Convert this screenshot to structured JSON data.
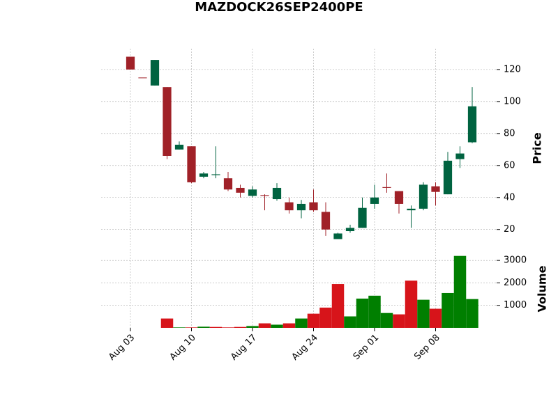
{
  "chart_data": {
    "type": "candlestick",
    "title": "MAZDOCK26SEP2400PE",
    "x": [
      0,
      1,
      2,
      3,
      4,
      5,
      6,
      7,
      8,
      9,
      10,
      11,
      12,
      13,
      14,
      15,
      16,
      17,
      18,
      19,
      20,
      21,
      22,
      23,
      24,
      25,
      26,
      27,
      28
    ],
    "open": [
      128,
      115,
      110,
      109,
      70,
      72,
      53,
      54,
      52,
      46,
      41,
      41.5,
      39,
      37,
      32,
      37,
      31,
      14,
      19,
      21,
      36,
      46.5,
      44,
      32,
      33,
      47,
      42,
      64,
      74.5
    ],
    "high": [
      128,
      115,
      126,
      109,
      75,
      72,
      56,
      72,
      56,
      48,
      47,
      42,
      49,
      40,
      38.5,
      45,
      37,
      18,
      23,
      40,
      48,
      55,
      44,
      35,
      49.5,
      49.5,
      68.5,
      72,
      109
    ],
    "low": [
      120,
      115,
      110,
      64,
      70,
      49,
      52,
      52,
      44,
      40,
      40,
      32,
      38,
      30,
      27,
      31,
      16,
      14,
      18,
      21,
      33,
      43,
      30,
      21,
      32,
      35,
      42,
      58.5,
      74
    ],
    "close": [
      120,
      115,
      126,
      66,
      73,
      49.5,
      55,
      54.5,
      45,
      43,
      45,
      41,
      46,
      32,
      36,
      32,
      20,
      17.5,
      21,
      33.5,
      40,
      46,
      36,
      33,
      48,
      43.5,
      63,
      67.5,
      97
    ],
    "up_color": "#006340",
    "down_color": "#a02128",
    "xlim": [
      -2.4,
      30
    ],
    "xticks": [
      {
        "value": 0,
        "label": "Aug 03"
      },
      {
        "value": 5,
        "label": "Aug 10"
      },
      {
        "value": 10,
        "label": "Aug 17"
      },
      {
        "value": 15,
        "label": "Aug 24"
      },
      {
        "value": 20,
        "label": "Sep 01"
      },
      {
        "value": 25,
        "label": "Sep 08"
      }
    ],
    "ylim": [
      9,
      133
    ],
    "yticks": [
      20,
      40,
      60,
      80,
      100,
      120
    ],
    "ylabel": "Price",
    "grid": true,
    "volume": {
      "values": [
        0,
        0,
        0,
        415,
        20,
        20,
        50,
        40,
        20,
        40,
        80,
        200,
        140,
        200,
        415,
        630,
        900,
        1950,
        510,
        1300,
        1430,
        660,
        600,
        2100,
        1250,
        850,
        1550,
        3200,
        1280
      ],
      "up_color": "#007f00",
      "down_color": "#d7141a",
      "ylim": [
        0,
        3500
      ],
      "yticks": [
        1000,
        2000,
        3000
      ],
      "ylabel": "Volume"
    }
  }
}
